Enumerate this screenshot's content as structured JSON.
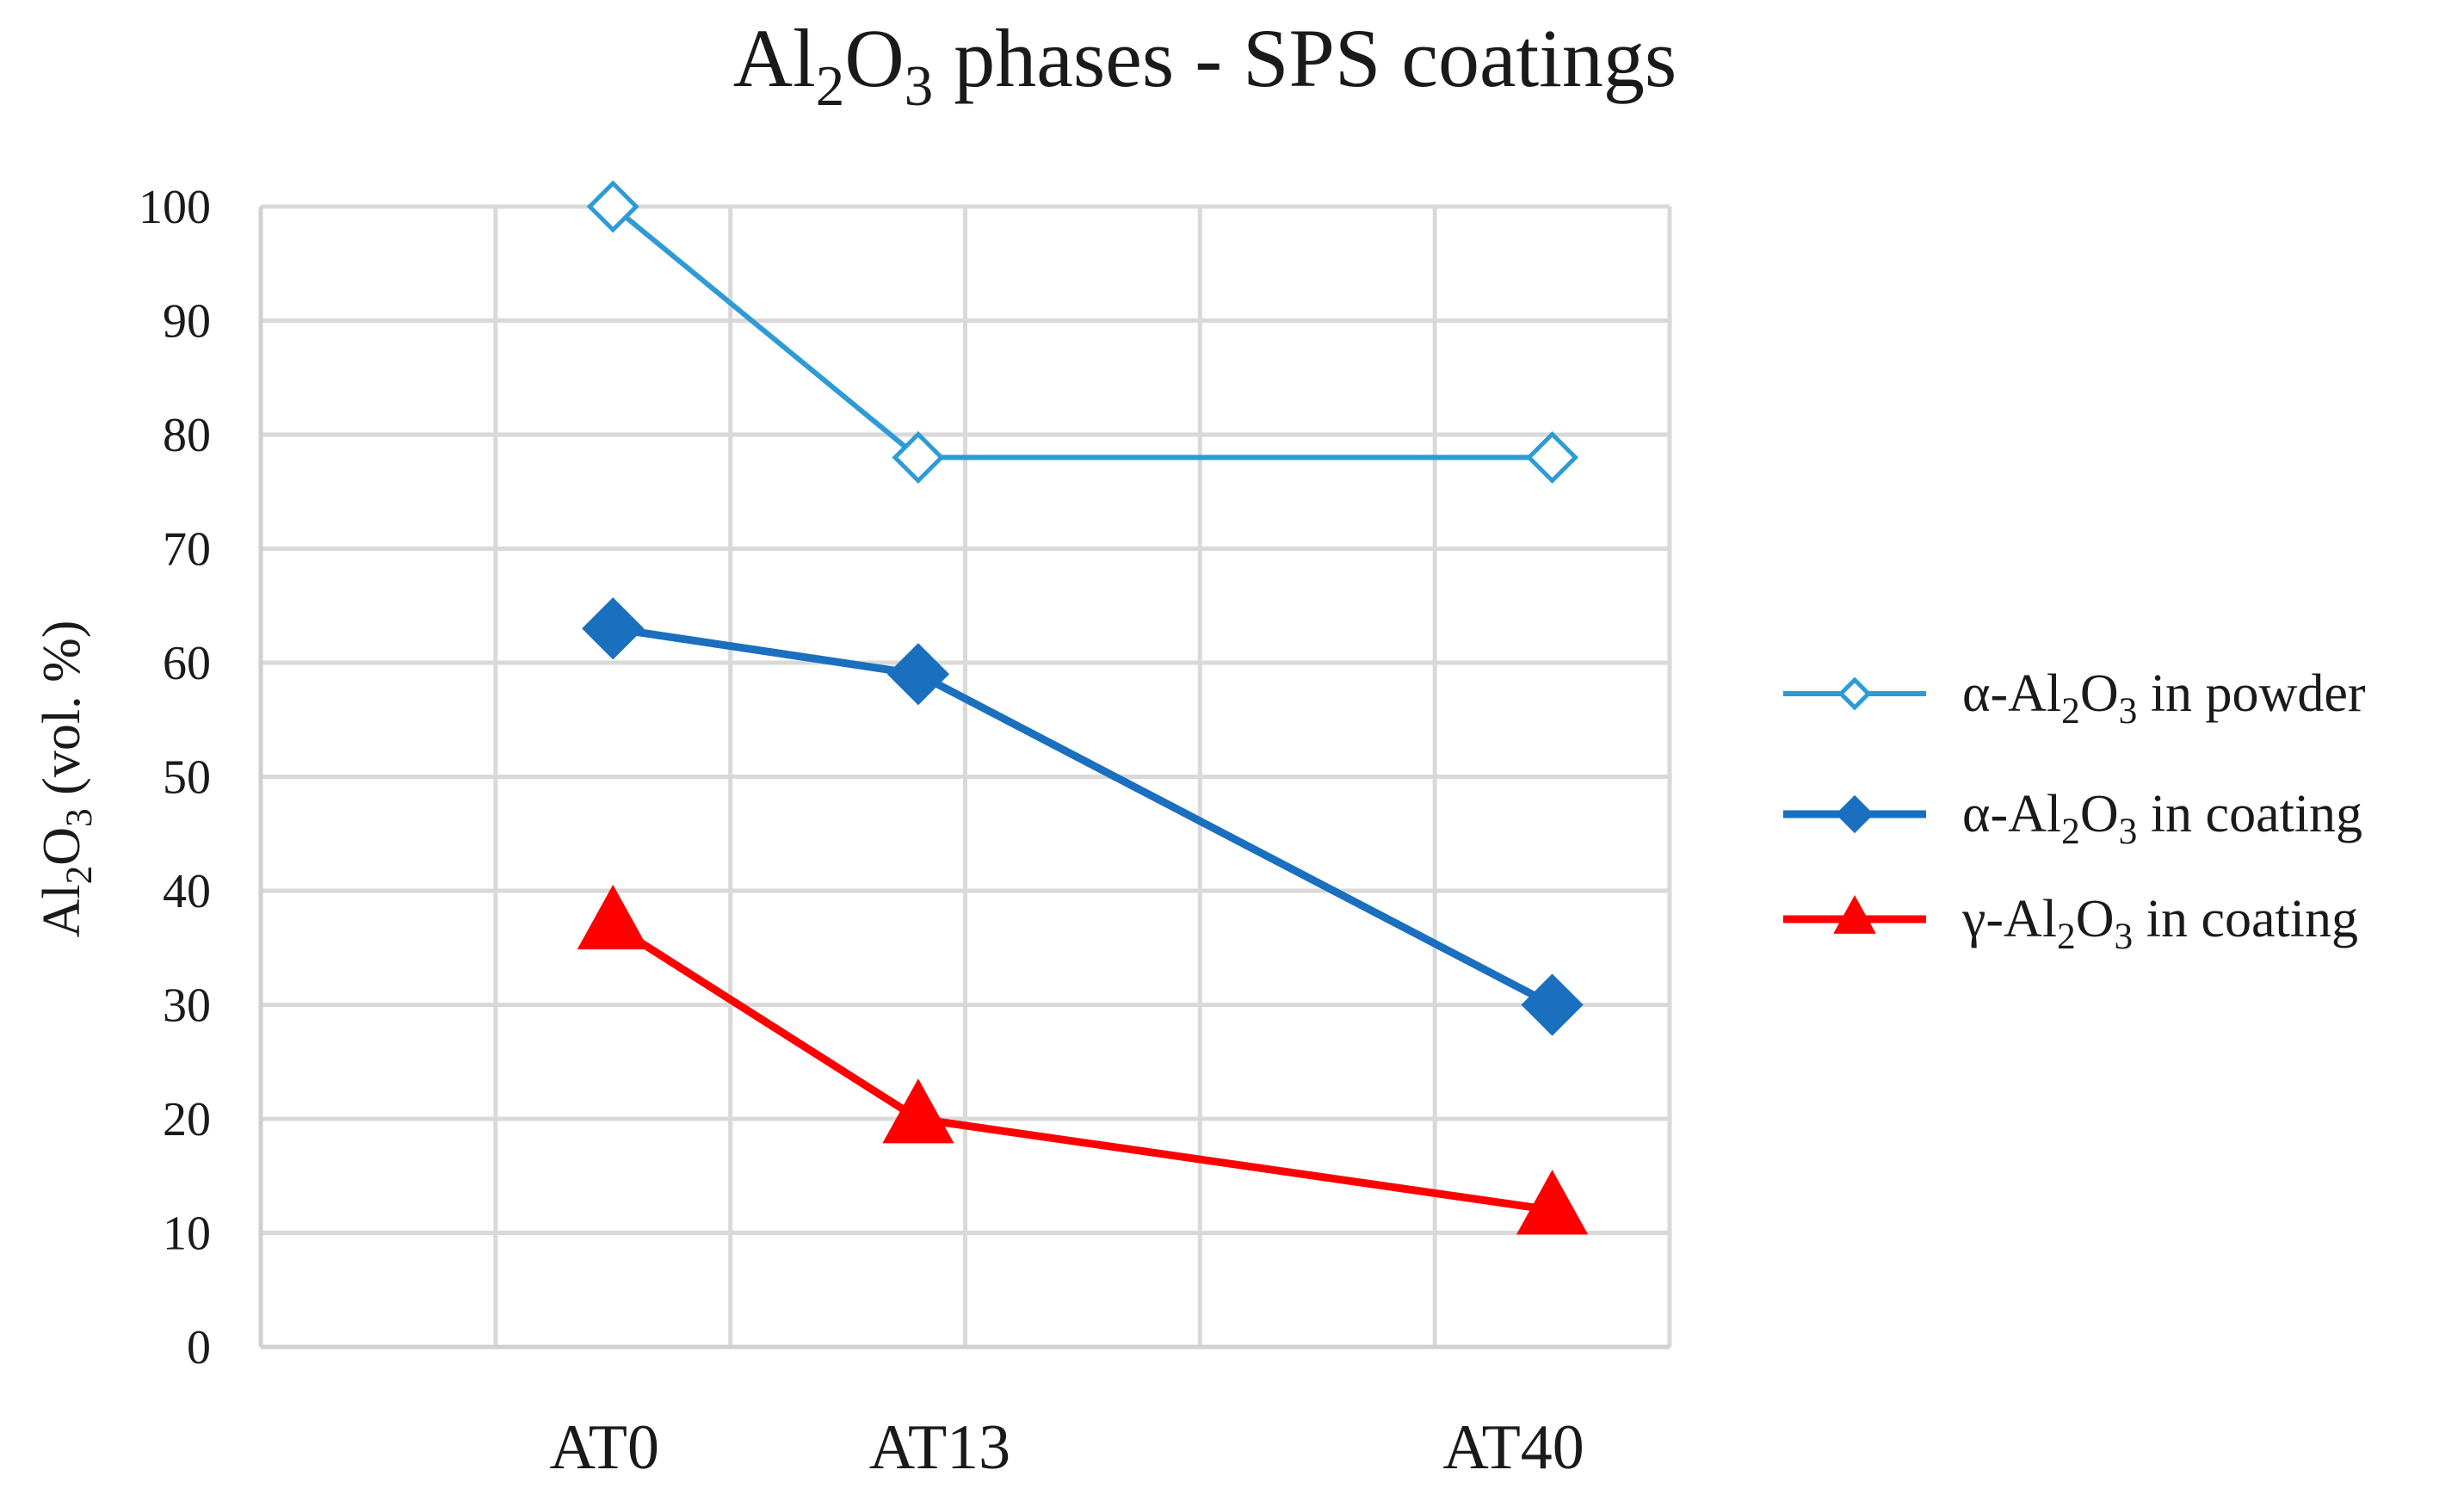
{
  "chart_data": {
    "type": "line",
    "title": {
      "pre": "Al",
      "sub1": "2",
      "mid": "O",
      "sub2": "3",
      "post": " phases - SPS coatings"
    },
    "ylabel": {
      "pre": "Al",
      "sub1": "2",
      "mid": "O",
      "sub2": "3",
      "post": " (vol. %)"
    },
    "xlabel": "",
    "categories": [
      "AT0",
      "AT13",
      "AT40"
    ],
    "x": [
      1.5,
      2.8,
      5.5
    ],
    "xlim": [
      0,
      6
    ],
    "ylim": [
      0,
      100
    ],
    "yticks": [
      0,
      10,
      20,
      30,
      40,
      50,
      60,
      70,
      80,
      90,
      100
    ],
    "grid": true,
    "legend_position": "right",
    "series": [
      {
        "name": "α-Al2O3 in powder",
        "legend": {
          "pre": "α-Al",
          "sub1": "2",
          "mid": "O",
          "sub2": "3",
          "post": " in powder"
        },
        "values": [
          100,
          78,
          78
        ],
        "color": "#2e9bd6",
        "marker": "diamond-open"
      },
      {
        "name": "α-Al2O3 in coating",
        "legend": {
          "pre": "α-Al",
          "sub1": "2",
          "mid": "O",
          "sub2": "3",
          "post": " in coating"
        },
        "values": [
          63,
          59,
          30
        ],
        "color": "#1a6fbf",
        "marker": "diamond-filled"
      },
      {
        "name": "γ-Al2O3 in coating",
        "legend": {
          "pre": "γ-Al",
          "sub1": "2",
          "mid": "O",
          "sub2": "3",
          "post": " in coating"
        },
        "values": [
          37,
          20,
          12
        ],
        "color": "#ff0000",
        "marker": "triangle"
      }
    ]
  }
}
